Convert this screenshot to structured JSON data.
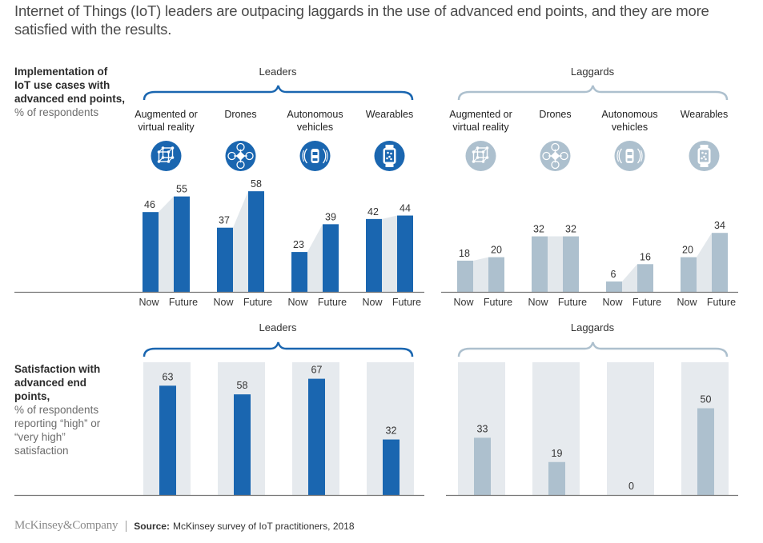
{
  "title": "Internet of Things (IoT) leaders are outpacing laggards in the use of advanced end points, and they are more satisfied with the results.",
  "colors": {
    "leaders": "#1a66b0",
    "laggards": "#adc0ce",
    "connector": "#e3e8ec",
    "column_bg": "#e6eaee",
    "axis": "#777777"
  },
  "top_section": {
    "label_bold": "Implementation of IoT use cases with advanced end points,",
    "label_sub": "% of respondents"
  },
  "bottom_section": {
    "label_bold": "Satisfaction with advanced end points,",
    "label_sub": "% of respondents reporting “high” or “very high” satisfaction"
  },
  "groups": [
    {
      "name": "Leaders",
      "color_key": "leaders"
    },
    {
      "name": "Laggards",
      "color_key": "laggards"
    }
  ],
  "categories": [
    {
      "label_lines": [
        "Augmented or",
        "virtual reality"
      ],
      "icon": "vr-cube-icon"
    },
    {
      "label_lines": [
        "Drones"
      ],
      "icon": "drone-icon"
    },
    {
      "label_lines": [
        "Autonomous",
        "vehicles"
      ],
      "icon": "autonomous-car-icon"
    },
    {
      "label_lines": [
        "Wearables"
      ],
      "icon": "smartwatch-icon"
    }
  ],
  "chart_data": [
    {
      "type": "bar",
      "title": "Implementation of IoT use cases with advanced end points, % of respondents",
      "categories": [
        "Augmented or virtual reality",
        "Drones",
        "Autonomous vehicles",
        "Wearables"
      ],
      "subcategories": [
        "Now",
        "Future"
      ],
      "series": [
        {
          "group": "Leaders",
          "name": "Now",
          "values": [
            46,
            37,
            23,
            42
          ]
        },
        {
          "group": "Leaders",
          "name": "Future",
          "values": [
            55,
            58,
            39,
            44
          ]
        },
        {
          "group": "Laggards",
          "name": "Now",
          "values": [
            18,
            32,
            6,
            20
          ]
        },
        {
          "group": "Laggards",
          "name": "Future",
          "values": [
            20,
            32,
            16,
            34
          ]
        }
      ],
      "xlabel": "",
      "ylabel": "% of respondents",
      "ylim": [
        0,
        65
      ],
      "grid": false
    },
    {
      "type": "bar",
      "title": "Satisfaction with advanced end points, % of respondents reporting “high” or “very high” satisfaction",
      "categories": [
        "Augmented or virtual reality",
        "Drones",
        "Autonomous vehicles",
        "Wearables"
      ],
      "series": [
        {
          "group": "Leaders",
          "name": "Satisfaction",
          "values": [
            63,
            58,
            67,
            32
          ]
        },
        {
          "group": "Laggards",
          "name": "Satisfaction",
          "values": [
            33,
            19,
            0,
            50
          ]
        }
      ],
      "xlabel": "",
      "ylabel": "% of respondents",
      "ylim": [
        0,
        75
      ],
      "grid": false
    }
  ],
  "footer": {
    "logo": "McKinsey&Company",
    "source_label": "Source:",
    "source_text": "McKinsey survey of IoT practitioners, 2018"
  }
}
